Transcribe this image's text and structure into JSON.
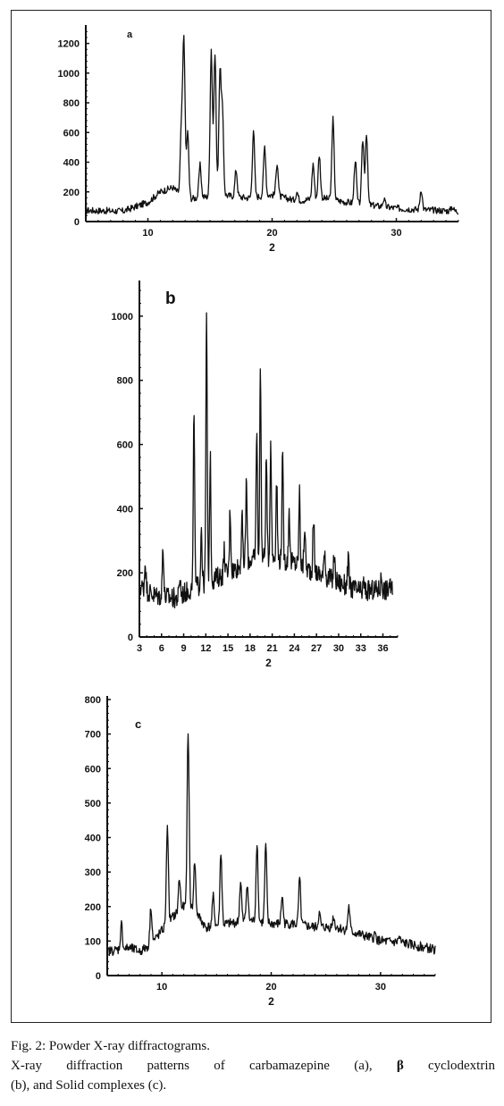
{
  "caption": {
    "line1": "Fig. 2: Powder X-ray diffractograms.",
    "line2_start": "X-ray diffraction patterns of carbamazepine (a), ",
    "line2_greek": "β",
    "line2_end": " cyclodextrin",
    "line3": "(b), and Solid complexes (c)."
  },
  "chart_data": [
    {
      "type": "line",
      "panel_label": "a",
      "xlabel": "2",
      "xlim": [
        5,
        35
      ],
      "ylim": [
        0,
        1300
      ],
      "xticks": [
        10,
        20,
        30
      ],
      "yticks": [
        0,
        200,
        400,
        600,
        800,
        1000,
        1200
      ],
      "baseline": [
        [
          5,
          75
        ],
        [
          8,
          70
        ],
        [
          10,
          130
        ],
        [
          11,
          200
        ],
        [
          12,
          230
        ],
        [
          13,
          150
        ],
        [
          14,
          160
        ],
        [
          16,
          180
        ],
        [
          18,
          160
        ],
        [
          20,
          180
        ],
        [
          22,
          140
        ],
        [
          24,
          160
        ],
        [
          26,
          130
        ],
        [
          28,
          110
        ],
        [
          30,
          90
        ],
        [
          32,
          80
        ],
        [
          35,
          70
        ]
      ],
      "peaks": [
        [
          12.9,
          1220
        ],
        [
          12.7,
          620
        ],
        [
          13.2,
          600
        ],
        [
          14.2,
          380
        ],
        [
          15.1,
          1160
        ],
        [
          15.4,
          1140
        ],
        [
          15.8,
          990
        ],
        [
          16.0,
          720
        ],
        [
          17.1,
          350
        ],
        [
          18.5,
          620
        ],
        [
          19.4,
          510
        ],
        [
          20.4,
          400
        ],
        [
          22.0,
          200
        ],
        [
          23.3,
          390
        ],
        [
          23.8,
          450
        ],
        [
          24.9,
          690
        ],
        [
          26.7,
          420
        ],
        [
          27.3,
          550
        ],
        [
          27.6,
          600
        ],
        [
          29.0,
          150
        ],
        [
          32.0,
          220
        ],
        [
          34.5,
          100
        ]
      ]
    },
    {
      "type": "line",
      "panel_label": "b",
      "xlabel": "2",
      "xlim": [
        3,
        38
      ],
      "ylim": [
        0,
        1100
      ],
      "xticks": [
        3,
        6,
        9,
        12,
        15,
        18,
        21,
        24,
        27,
        30,
        33,
        36
      ],
      "yticks": [
        0,
        200,
        400,
        600,
        800,
        1000
      ],
      "baseline": [
        [
          3,
          160
        ],
        [
          5,
          130
        ],
        [
          8,
          120
        ],
        [
          10,
          150
        ],
        [
          12,
          170
        ],
        [
          15,
          200
        ],
        [
          18,
          240
        ],
        [
          21,
          250
        ],
        [
          24,
          230
        ],
        [
          27,
          200
        ],
        [
          30,
          170
        ],
        [
          33,
          140
        ],
        [
          36,
          150
        ],
        [
          37.3,
          140
        ]
      ],
      "peaks": [
        [
          3.8,
          240
        ],
        [
          6.2,
          290
        ],
        [
          8.5,
          190
        ],
        [
          10.4,
          710
        ],
        [
          11.4,
          350
        ],
        [
          12.1,
          1020
        ],
        [
          12.6,
          560
        ],
        [
          14.5,
          270
        ],
        [
          15.3,
          400
        ],
        [
          16.9,
          380
        ],
        [
          17.5,
          490
        ],
        [
          18.9,
          650
        ],
        [
          19.4,
          850
        ],
        [
          20.2,
          560
        ],
        [
          20.8,
          610
        ],
        [
          21.6,
          500
        ],
        [
          22.4,
          560
        ],
        [
          23.3,
          400
        ],
        [
          24.7,
          450
        ],
        [
          25.4,
          350
        ],
        [
          26.6,
          380
        ],
        [
          28.1,
          280
        ],
        [
          29.4,
          260
        ],
        [
          31.3,
          240
        ],
        [
          33.4,
          170
        ],
        [
          35.8,
          190
        ],
        [
          36.9,
          170
        ]
      ]
    },
    {
      "type": "line",
      "panel_label": "c",
      "xlabel": "2",
      "xlim": [
        5,
        35
      ],
      "ylim": [
        0,
        800
      ],
      "xticks": [
        10,
        20,
        30
      ],
      "yticks": [
        0,
        100,
        200,
        300,
        400,
        500,
        600,
        700,
        800
      ],
      "baseline": [
        [
          5,
          70
        ],
        [
          7,
          80
        ],
        [
          8,
          70
        ],
        [
          9,
          90
        ],
        [
          10,
          130
        ],
        [
          11,
          170
        ],
        [
          12,
          200
        ],
        [
          13,
          190
        ],
        [
          14,
          140
        ],
        [
          16,
          150
        ],
        [
          18,
          160
        ],
        [
          20,
          150
        ],
        [
          22,
          150
        ],
        [
          24,
          140
        ],
        [
          26,
          140
        ],
        [
          28,
          120
        ],
        [
          30,
          100
        ],
        [
          32,
          95
        ],
        [
          35,
          75
        ]
      ],
      "peaks": [
        [
          6.3,
          150
        ],
        [
          9.0,
          200
        ],
        [
          10.5,
          440
        ],
        [
          11.6,
          280
        ],
        [
          12.4,
          710
        ],
        [
          13.0,
          330
        ],
        [
          14.7,
          230
        ],
        [
          15.4,
          360
        ],
        [
          17.2,
          270
        ],
        [
          17.8,
          270
        ],
        [
          18.7,
          390
        ],
        [
          19.5,
          380
        ],
        [
          21.0,
          230
        ],
        [
          22.6,
          280
        ],
        [
          24.4,
          180
        ],
        [
          25.7,
          170
        ],
        [
          27.1,
          200
        ],
        [
          29.5,
          120
        ],
        [
          31.7,
          110
        ]
      ]
    }
  ]
}
